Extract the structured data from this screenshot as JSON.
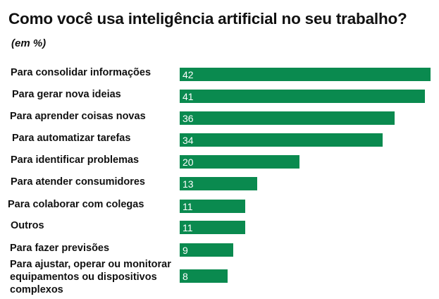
{
  "chart_data": {
    "type": "bar",
    "orientation": "horizontal",
    "title": "Como você usa inteligência artificial no seu trabalho?",
    "subtitle": "(em %)",
    "categories": [
      "Para consolidar informações",
      "Para gerar nova ideias",
      "Para aprender coisas novas",
      "Para automatizar tarefas",
      "Para identificar problemas",
      "Para atender consumidores",
      "Para colaborar com colegas",
      "Outros",
      "Para fazer previsões",
      "Para ajustar, operar ou monitorar equipamentos ou dispositivos complexos"
    ],
    "values": [
      42,
      41,
      36,
      34,
      20,
      13,
      11,
      11,
      9,
      8
    ],
    "value_labels": [
      "42",
      "41",
      "36",
      "34",
      "20",
      "13",
      "11",
      "11",
      "9",
      "8"
    ],
    "bar_color": "#0a8a4f",
    "grid": false,
    "legend": "none"
  }
}
